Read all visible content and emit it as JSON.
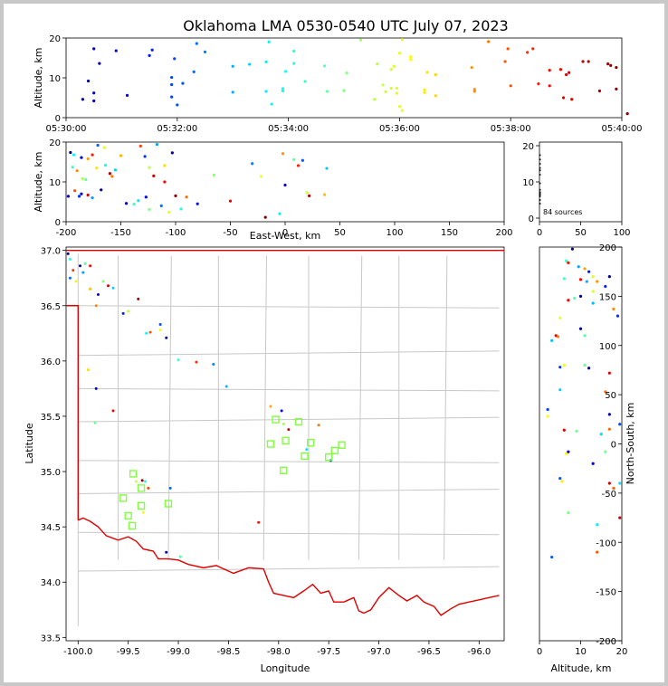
{
  "title": "Oklahoma LMA 0530-0540 UTC July 07, 2023",
  "source_count_label": "84 sources",
  "colors": {
    "border_red": "#e00000",
    "county_gray": "#c8c8c8",
    "station_green": "#80ff40",
    "frame_gray": "#c8c8c8"
  },
  "chart_data": [
    {
      "name": "altitude-vs-time",
      "type": "scatter",
      "ylabel": "Altitude, km",
      "xlabel": "",
      "xticks": [
        "05:30:00",
        "05:32:00",
        "05:34:00",
        "05:36:00",
        "05:38:00",
        "05:40:00"
      ],
      "xlim_minutes": [
        0,
        10
      ],
      "yticks": [
        0,
        10,
        20
      ],
      "ylim": [
        0,
        20
      ],
      "color_scale": "time (blue → red)",
      "points_t_alt": [
        [
          0.3,
          4.6
        ],
        [
          0.4,
          9.2
        ],
        [
          0.5,
          6.2
        ],
        [
          0.5,
          4.2
        ],
        [
          0.5,
          17.3
        ],
        [
          0.6,
          13.6
        ],
        [
          0.9,
          16.8
        ],
        [
          1.1,
          5.6
        ],
        [
          1.5,
          15.6
        ],
        [
          1.55,
          17.0
        ],
        [
          1.9,
          10.1
        ],
        [
          1.9,
          8.3
        ],
        [
          1.9,
          5.2
        ],
        [
          1.95,
          14.8
        ],
        [
          2.0,
          3.2
        ],
        [
          2.1,
          8.6
        ],
        [
          2.3,
          11.5
        ],
        [
          2.35,
          18.6
        ],
        [
          2.5,
          16.5
        ],
        [
          3.0,
          6.4
        ],
        [
          3.0,
          12.9
        ],
        [
          3.3,
          13.4
        ],
        [
          3.6,
          6.6
        ],
        [
          3.6,
          14.0
        ],
        [
          3.65,
          19.0
        ],
        [
          3.7,
          3.4
        ],
        [
          3.9,
          7.3
        ],
        [
          3.9,
          6.7
        ],
        [
          3.95,
          11.6
        ],
        [
          4.1,
          13.6
        ],
        [
          4.1,
          16.7
        ],
        [
          4.3,
          9.1
        ],
        [
          4.65,
          13.0
        ],
        [
          4.7,
          6.6
        ],
        [
          5.0,
          6.8
        ],
        [
          5.05,
          11.2
        ],
        [
          5.3,
          19.5
        ],
        [
          5.55,
          4.6
        ],
        [
          5.6,
          13.5
        ],
        [
          5.7,
          8.2
        ],
        [
          5.75,
          6.5
        ],
        [
          5.85,
          7.4
        ],
        [
          5.85,
          12.1
        ],
        [
          5.9,
          12.9
        ],
        [
          5.95,
          6.1
        ],
        [
          5.95,
          7.4
        ],
        [
          6.0,
          2.8
        ],
        [
          6.05,
          1.8
        ],
        [
          6.0,
          16.2
        ],
        [
          6.05,
          19.6
        ],
        [
          6.2,
          15.3
        ],
        [
          6.2,
          14.6
        ],
        [
          6.45,
          7.0
        ],
        [
          6.45,
          6.3
        ],
        [
          6.5,
          11.4
        ],
        [
          6.65,
          10.8
        ],
        [
          6.65,
          5.5
        ],
        [
          7.3,
          12.6
        ],
        [
          7.35,
          6.6
        ],
        [
          7.35,
          7.1
        ],
        [
          7.6,
          19.1
        ],
        [
          7.9,
          14.1
        ],
        [
          7.95,
          17.3
        ],
        [
          8.0,
          8.0
        ],
        [
          8.3,
          16.4
        ],
        [
          8.4,
          17.3
        ],
        [
          8.5,
          8.5
        ],
        [
          8.7,
          11.9
        ],
        [
          8.7,
          8.0
        ],
        [
          8.9,
          12.1
        ],
        [
          8.95,
          5.0
        ],
        [
          9.0,
          10.8
        ],
        [
          9.05,
          11.3
        ],
        [
          9.1,
          4.6
        ],
        [
          9.3,
          14.1
        ],
        [
          9.4,
          14.1
        ],
        [
          9.6,
          6.7
        ],
        [
          9.75,
          13.5
        ],
        [
          9.8,
          13.1
        ],
        [
          9.9,
          12.6
        ],
        [
          9.9,
          7.2
        ],
        [
          10.1,
          1.0
        ]
      ]
    },
    {
      "name": "altitude-vs-east-west",
      "type": "scatter",
      "xlabel": "East-West, km",
      "ylabel": "Altitude, km",
      "xticks": [
        -200,
        -150,
        -100,
        -50,
        0,
        50,
        100,
        150,
        200
      ],
      "xlim": [
        -200,
        200
      ],
      "yticks": [
        0,
        10,
        20
      ],
      "ylim": [
        0,
        20
      ]
    },
    {
      "name": "altitude-histogram",
      "type": "scatter",
      "xticks": [
        0,
        50,
        100
      ],
      "xlim": [
        0,
        100
      ],
      "yticks": [
        0,
        10,
        20
      ],
      "ylim": [
        -1,
        21
      ],
      "annotation": "84 sources"
    },
    {
      "name": "plan-view",
      "type": "scatter",
      "xlabel": "Longitude",
      "ylabel": "Latitude",
      "xticks": [
        -100.0,
        -99.5,
        -99.0,
        -98.5,
        -98.0,
        -97.5,
        -97.0,
        -96.5,
        -96.0
      ],
      "xlim": [
        -100.12,
        -95.75
      ],
      "yticks": [
        33.5,
        34.0,
        34.5,
        35.0,
        35.5,
        36.0,
        36.5,
        37.0
      ],
      "ylim": [
        33.47,
        37.03
      ],
      "stations_lon_lat": [
        [
          -99.45,
          34.98
        ],
        [
          -99.37,
          34.85
        ],
        [
          -99.55,
          34.76
        ],
        [
          -99.37,
          34.69
        ],
        [
          -99.5,
          34.6
        ],
        [
          -99.46,
          34.51
        ],
        [
          -99.1,
          34.71
        ],
        [
          -97.93,
          35.28
        ],
        [
          -98.03,
          35.47
        ],
        [
          -98.08,
          35.25
        ],
        [
          -97.8,
          35.45
        ],
        [
          -97.68,
          35.26
        ],
        [
          -97.74,
          35.14
        ],
        [
          -97.95,
          35.01
        ],
        [
          -97.5,
          35.13
        ],
        [
          -97.44,
          35.19
        ],
        [
          -97.37,
          35.24
        ]
      ],
      "sources_lon_lat": [
        [
          -100.1,
          36.97
        ],
        [
          -100.08,
          36.92
        ],
        [
          -100.05,
          36.82
        ],
        [
          -100.08,
          36.75
        ],
        [
          -100.02,
          36.72
        ],
        [
          -99.98,
          36.86
        ],
        [
          -99.93,
          36.88
        ],
        [
          -99.88,
          36.86
        ],
        [
          -99.95,
          36.8
        ],
        [
          -99.88,
          36.65
        ],
        [
          -99.8,
          36.6
        ],
        [
          -99.75,
          36.72
        ],
        [
          -99.7,
          36.68
        ],
        [
          -99.65,
          36.66
        ],
        [
          -99.82,
          36.5
        ],
        [
          -99.55,
          36.43
        ],
        [
          -99.5,
          36.45
        ],
        [
          -99.4,
          36.56
        ],
        [
          -99.32,
          36.25
        ],
        [
          -99.28,
          36.26
        ],
        [
          -99.18,
          36.33
        ],
        [
          -99.18,
          36.28
        ],
        [
          -99.12,
          36.21
        ],
        [
          -99.0,
          36.01
        ],
        [
          -98.82,
          35.99
        ],
        [
          -98.65,
          35.97
        ],
        [
          -99.9,
          35.92
        ],
        [
          -99.82,
          35.75
        ],
        [
          -99.83,
          35.44
        ],
        [
          -99.65,
          35.55
        ],
        [
          -98.52,
          35.77
        ],
        [
          -98.08,
          35.59
        ],
        [
          -97.97,
          35.55
        ],
        [
          -97.95,
          35.43
        ],
        [
          -97.9,
          35.38
        ],
        [
          -97.72,
          35.2
        ],
        [
          -97.6,
          35.42
        ],
        [
          -97.48,
          35.1
        ],
        [
          -99.42,
          34.91
        ],
        [
          -99.36,
          34.92
        ],
        [
          -99.33,
          34.91
        ],
        [
          -99.3,
          34.85
        ],
        [
          -99.08,
          34.85
        ],
        [
          -99.35,
          34.63
        ],
        [
          -99.12,
          34.27
        ],
        [
          -98.98,
          34.23
        ],
        [
          -98.2,
          34.54
        ]
      ]
    },
    {
      "name": "north-south-vs-altitude",
      "type": "scatter",
      "xlabel": "Altitude, km",
      "ylabel": "North-South, km",
      "xticks": [
        0,
        10,
        20
      ],
      "xlim": [
        0,
        20
      ],
      "yticks": [
        -200,
        -150,
        -100,
        -50,
        0,
        50,
        100,
        150,
        200
      ],
      "ylim": [
        -200,
        200
      ]
    }
  ]
}
